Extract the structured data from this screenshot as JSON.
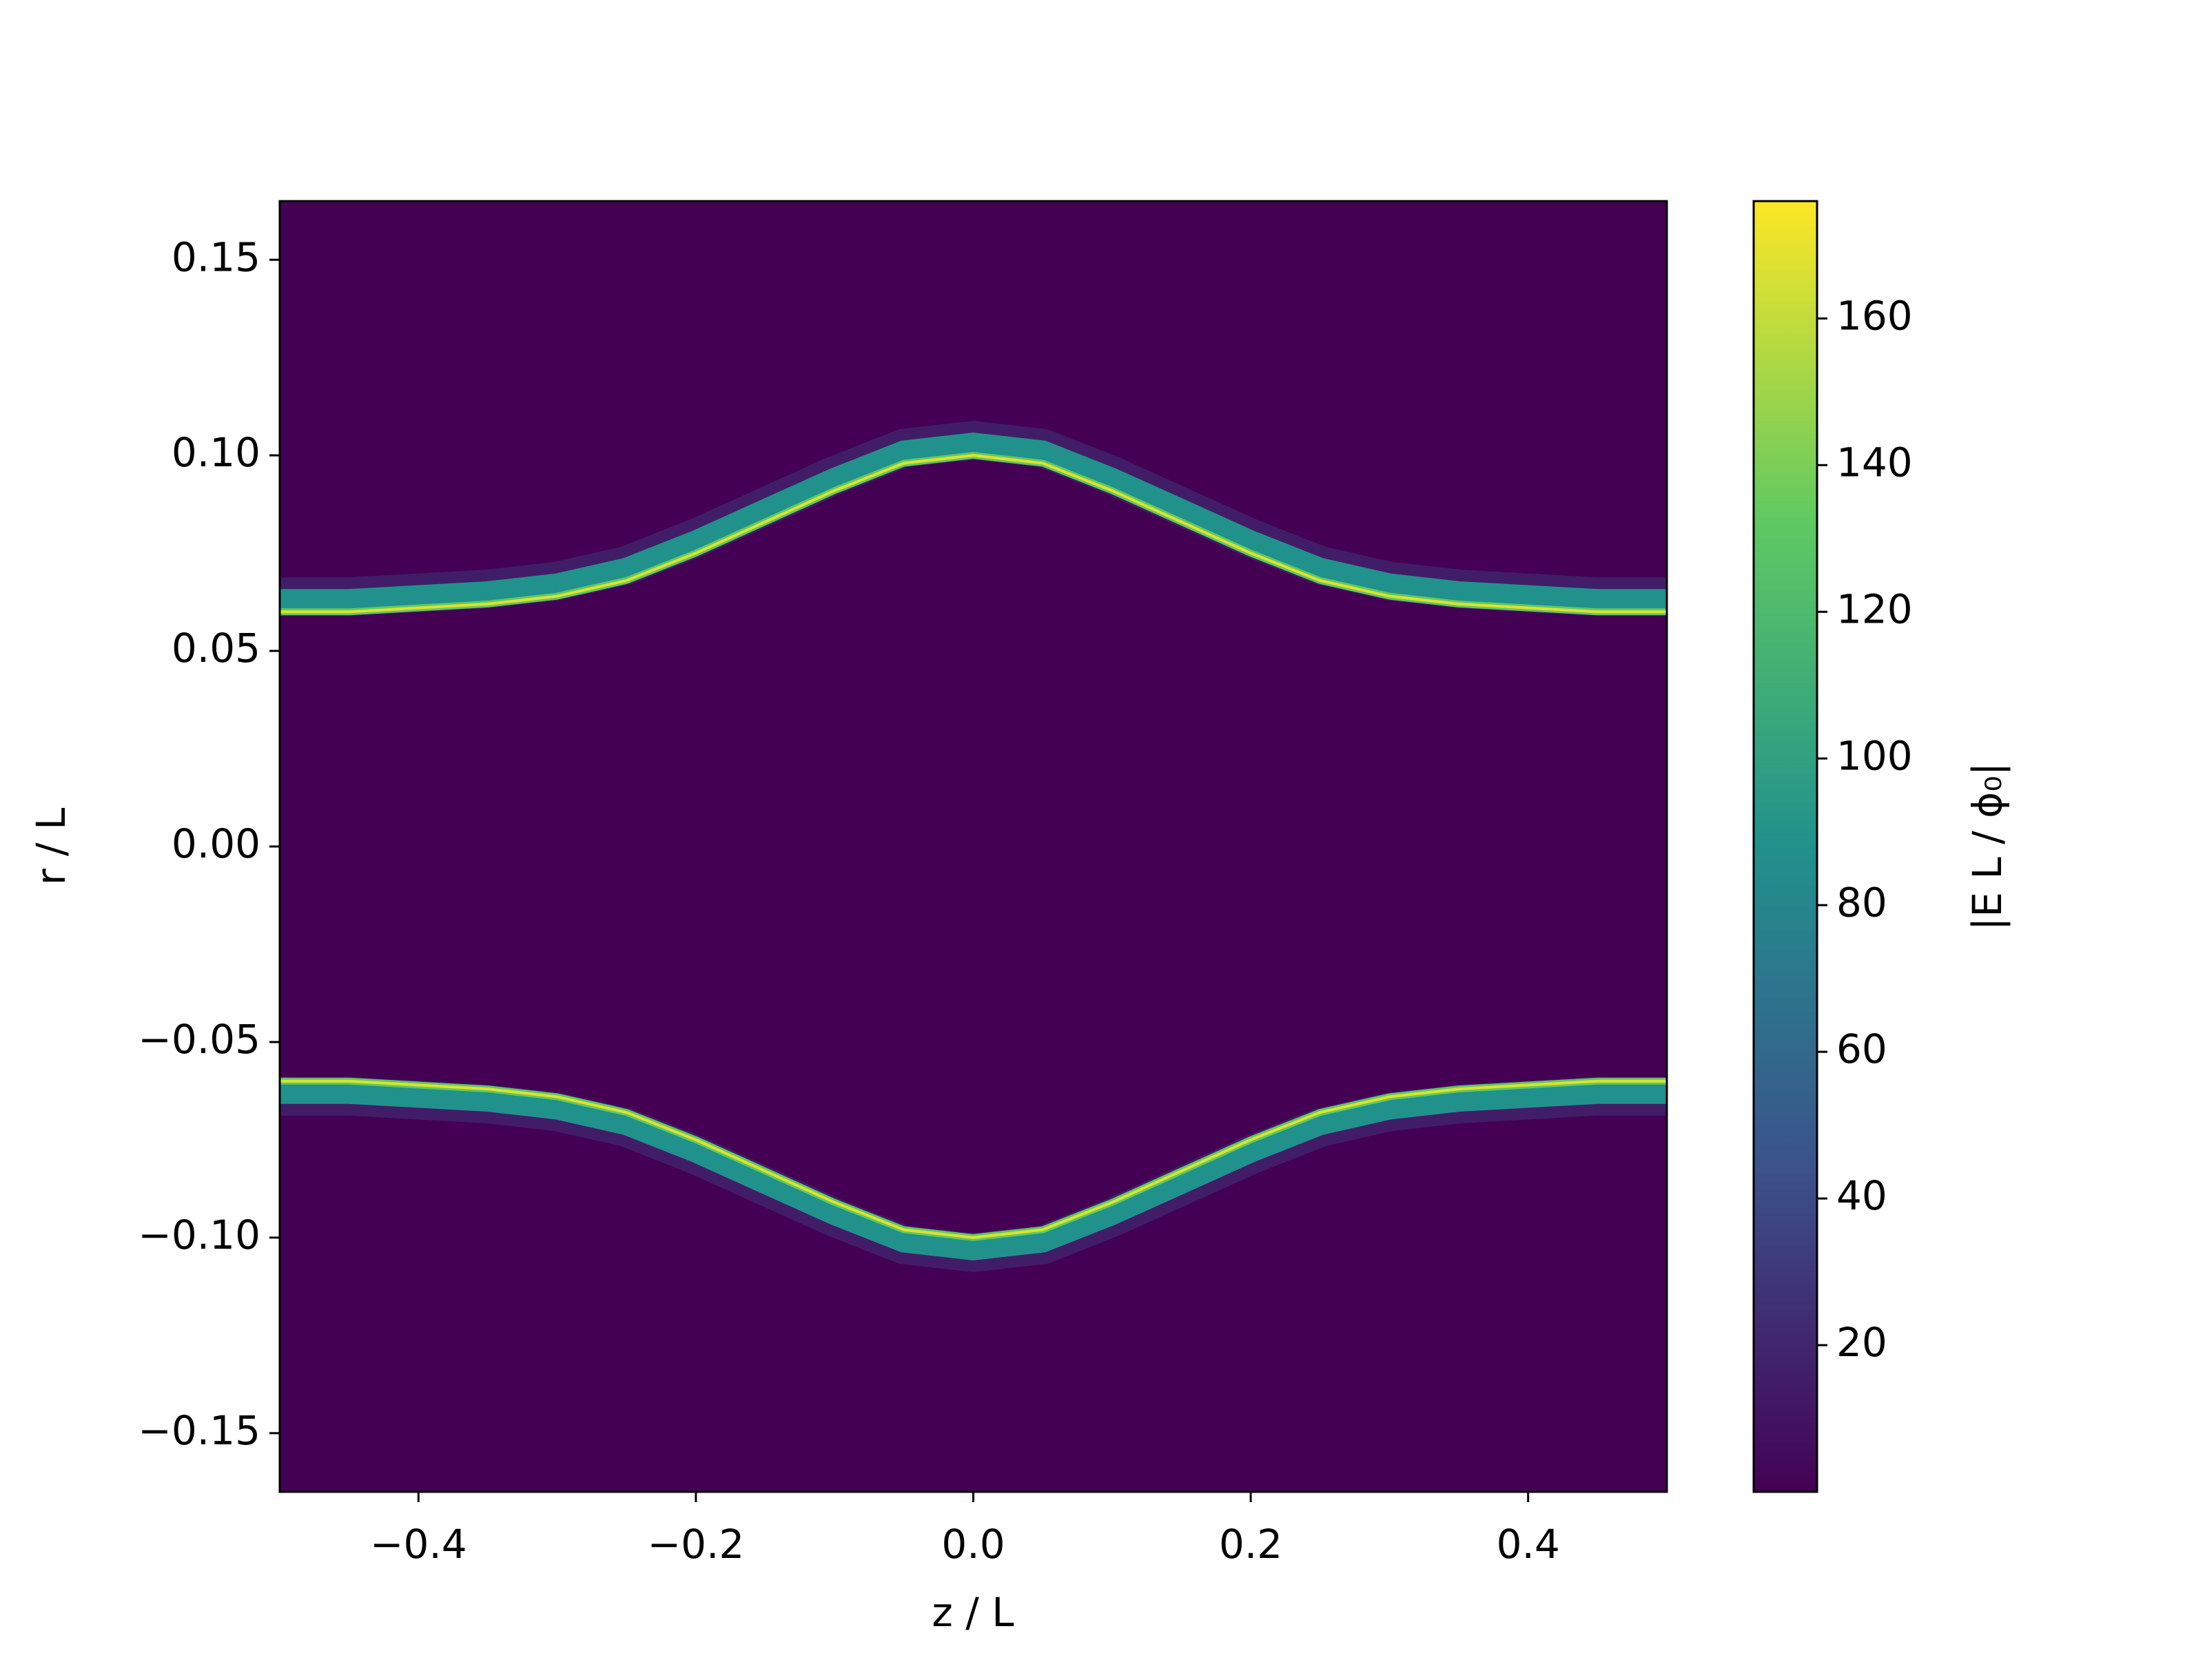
{
  "chart_data": {
    "type": "heatmap",
    "x_label": "z / L",
    "y_label": "r / L",
    "colorbar_label": "|E L / ϕ₀|",
    "xlim": [
      -0.5,
      0.5
    ],
    "ylim": [
      -0.165,
      0.165
    ],
    "xticks": [
      {
        "value": -0.4,
        "label": "−0.4"
      },
      {
        "value": -0.2,
        "label": "−0.2"
      },
      {
        "value": 0,
        "label": "0.0"
      },
      0.2,
      0.4
    ],
    "yticks": [
      {
        "value": -0.15,
        "label": "−0.15"
      },
      {
        "value": -0.1,
        "label": "−0.10"
      },
      {
        "value": -0.05,
        "label": "−0.05"
      },
      {
        "value": 0,
        "label": "0.00"
      },
      0.05,
      {
        "value": 0.1,
        "label": "0.10"
      },
      0.15
    ],
    "clim": [
      0,
      176
    ],
    "cticks": [
      20,
      40,
      60,
      80,
      100,
      120,
      140,
      160
    ],
    "colormap": [
      "#440154",
      "#3b528b",
      "#21918c",
      "#5ec962",
      "#fde725"
    ],
    "x": [
      -0.5,
      -0.45,
      -0.4,
      -0.35,
      -0.3,
      -0.25,
      -0.2,
      -0.15,
      -0.1,
      -0.05,
      0,
      0.05,
      0.1,
      0.15,
      0.2,
      0.25,
      0.3,
      0.35,
      0.4,
      0.45,
      0.5
    ],
    "series": [
      {
        "values": [
          0.06,
          0.06,
          0.061,
          0.062,
          0.064,
          0.068,
          0.075,
          0.083,
          0.091,
          0.098,
          0.1,
          0.098,
          0.091,
          0.083,
          0.075,
          0.068,
          0.064,
          0.062,
          0.061,
          0.06,
          0.06
        ]
      },
      {
        "values": [
          -0.06,
          -0.06,
          -0.061,
          -0.062,
          -0.064,
          -0.068,
          -0.075,
          -0.083,
          -0.091,
          -0.098,
          -0.1,
          -0.098,
          -0.091,
          -0.083,
          -0.075,
          -0.068,
          -0.064,
          -0.062,
          -0.061,
          -0.06,
          -0.06
        ]
      }
    ]
  }
}
